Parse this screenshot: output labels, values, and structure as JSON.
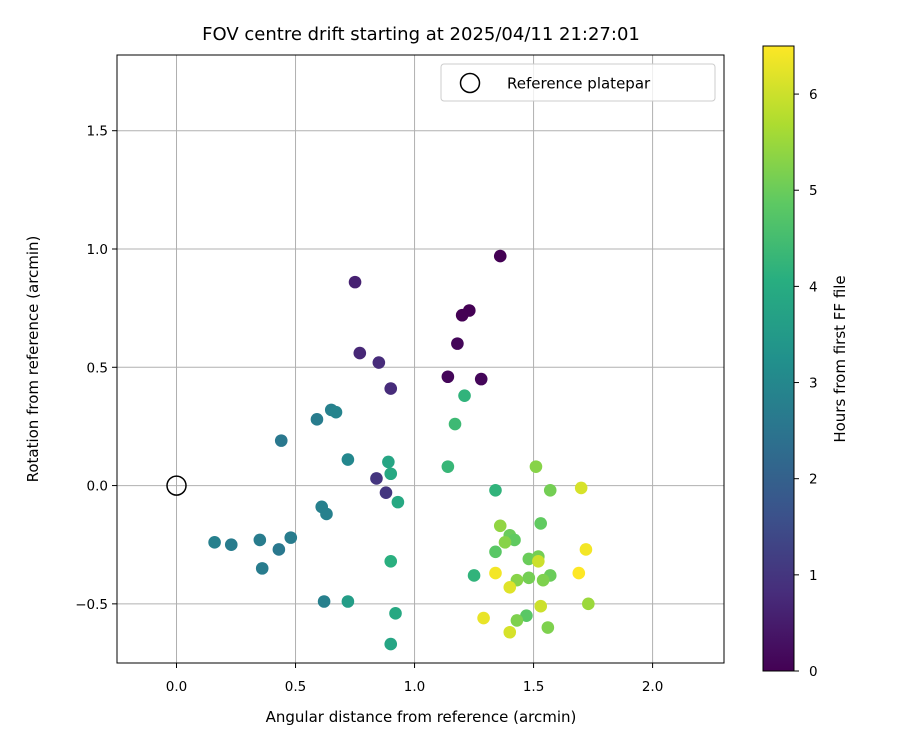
{
  "chart_data": {
    "type": "scatter",
    "title": "FOV centre drift starting at 2025/04/11 21:27:01",
    "xlabel": "Angular distance from reference (arcmin)",
    "ylabel": "Rotation from reference (arcmin)",
    "xlim": [
      -0.25,
      2.3
    ],
    "ylim": [
      -0.75,
      1.82
    ],
    "xticks": [
      0.0,
      0.5,
      1.0,
      1.5,
      2.0
    ],
    "xtick_labels": [
      "0.0",
      "0.5",
      "1.0",
      "1.5",
      "2.0"
    ],
    "yticks": [
      -0.5,
      0.0,
      0.5,
      1.0,
      1.5
    ],
    "ytick_labels": [
      "−0.5",
      "0.0",
      "0.5",
      "1.0",
      "1.5"
    ],
    "grid": true,
    "legend": {
      "placement": "top-right",
      "entries": [
        {
          "label": "Reference platepar",
          "marker": "open-circle"
        }
      ]
    },
    "reference_point": {
      "x": 0.0,
      "y": 0.0
    },
    "colorbar": {
      "label": "Hours from first FF file",
      "colormap": "viridis",
      "range": [
        0,
        6.5
      ],
      "ticks": [
        0,
        1,
        2,
        3,
        4,
        5,
        6
      ],
      "tick_labels": [
        "0",
        "1",
        "2",
        "3",
        "4",
        "5",
        "6"
      ]
    },
    "points": [
      {
        "x": 1.36,
        "y": 0.97,
        "hours": 0.0
      },
      {
        "x": 1.23,
        "y": 0.74,
        "hours": 0.0
      },
      {
        "x": 1.2,
        "y": 0.72,
        "hours": 0.0
      },
      {
        "x": 1.18,
        "y": 0.6,
        "hours": 0.1
      },
      {
        "x": 1.14,
        "y": 0.46,
        "hours": 0.1
      },
      {
        "x": 1.28,
        "y": 0.45,
        "hours": 0.1
      },
      {
        "x": 0.75,
        "y": 0.86,
        "hours": 0.6
      },
      {
        "x": 0.77,
        "y": 0.56,
        "hours": 0.7
      },
      {
        "x": 0.85,
        "y": 0.52,
        "hours": 0.8
      },
      {
        "x": 0.9,
        "y": 0.41,
        "hours": 0.8
      },
      {
        "x": 0.84,
        "y": 0.03,
        "hours": 1.0
      },
      {
        "x": 0.88,
        "y": -0.03,
        "hours": 1.0
      },
      {
        "x": 0.44,
        "y": 0.19,
        "hours": 2.6
      },
      {
        "x": 0.59,
        "y": 0.28,
        "hours": 2.7
      },
      {
        "x": 0.65,
        "y": 0.32,
        "hours": 2.8
      },
      {
        "x": 0.67,
        "y": 0.31,
        "hours": 2.9
      },
      {
        "x": 0.72,
        "y": 0.11,
        "hours": 3.0
      },
      {
        "x": 0.61,
        "y": -0.09,
        "hours": 2.8
      },
      {
        "x": 0.63,
        "y": -0.12,
        "hours": 2.8
      },
      {
        "x": 0.48,
        "y": -0.22,
        "hours": 2.7
      },
      {
        "x": 0.43,
        "y": -0.27,
        "hours": 2.6
      },
      {
        "x": 0.35,
        "y": -0.23,
        "hours": 2.7
      },
      {
        "x": 0.23,
        "y": -0.25,
        "hours": 2.7
      },
      {
        "x": 0.16,
        "y": -0.24,
        "hours": 2.8
      },
      {
        "x": 0.36,
        "y": -0.35,
        "hours": 2.7
      },
      {
        "x": 0.62,
        "y": -0.49,
        "hours": 2.8
      },
      {
        "x": 0.72,
        "y": -0.49,
        "hours": 3.6
      },
      {
        "x": 0.89,
        "y": 0.1,
        "hours": 3.8
      },
      {
        "x": 0.9,
        "y": 0.05,
        "hours": 3.9
      },
      {
        "x": 0.93,
        "y": -0.07,
        "hours": 3.9
      },
      {
        "x": 0.9,
        "y": -0.32,
        "hours": 4.1
      },
      {
        "x": 0.92,
        "y": -0.54,
        "hours": 3.9
      },
      {
        "x": 0.9,
        "y": -0.67,
        "hours": 3.8
      },
      {
        "x": 1.21,
        "y": 0.38,
        "hours": 4.2
      },
      {
        "x": 1.17,
        "y": 0.26,
        "hours": 4.4
      },
      {
        "x": 1.14,
        "y": 0.08,
        "hours": 4.3
      },
      {
        "x": 1.34,
        "y": -0.02,
        "hours": 4.2
      },
      {
        "x": 1.25,
        "y": -0.38,
        "hours": 4.2
      },
      {
        "x": 1.34,
        "y": -0.28,
        "hours": 4.8
      },
      {
        "x": 1.4,
        "y": -0.21,
        "hours": 5.0
      },
      {
        "x": 1.42,
        "y": -0.23,
        "hours": 4.9
      },
      {
        "x": 1.38,
        "y": -0.24,
        "hours": 5.3
      },
      {
        "x": 1.36,
        "y": -0.17,
        "hours": 5.4
      },
      {
        "x": 1.48,
        "y": -0.31,
        "hours": 5.0
      },
      {
        "x": 1.52,
        "y": -0.3,
        "hours": 5.1
      },
      {
        "x": 1.52,
        "y": -0.32,
        "hours": 6.0
      },
      {
        "x": 1.53,
        "y": -0.16,
        "hours": 4.9
      },
      {
        "x": 1.51,
        "y": 0.08,
        "hours": 5.3
      },
      {
        "x": 1.57,
        "y": -0.02,
        "hours": 5.1
      },
      {
        "x": 1.57,
        "y": -0.38,
        "hours": 5.0
      },
      {
        "x": 1.54,
        "y": -0.4,
        "hours": 5.2
      },
      {
        "x": 1.48,
        "y": -0.39,
        "hours": 5.1
      },
      {
        "x": 1.43,
        "y": -0.4,
        "hours": 5.3
      },
      {
        "x": 1.47,
        "y": -0.55,
        "hours": 4.8
      },
      {
        "x": 1.43,
        "y": -0.57,
        "hours": 5.2
      },
      {
        "x": 1.53,
        "y": -0.51,
        "hours": 6.0
      },
      {
        "x": 1.56,
        "y": -0.6,
        "hours": 5.2
      },
      {
        "x": 1.4,
        "y": -0.62,
        "hours": 6.1
      },
      {
        "x": 1.29,
        "y": -0.56,
        "hours": 6.3
      },
      {
        "x": 1.34,
        "y": -0.37,
        "hours": 6.4
      },
      {
        "x": 1.4,
        "y": -0.43,
        "hours": 6.2
      },
      {
        "x": 1.7,
        "y": -0.01,
        "hours": 6.1
      },
      {
        "x": 1.72,
        "y": -0.27,
        "hours": 6.4
      },
      {
        "x": 1.69,
        "y": -0.37,
        "hours": 6.5
      },
      {
        "x": 1.73,
        "y": -0.5,
        "hours": 5.5
      }
    ]
  }
}
